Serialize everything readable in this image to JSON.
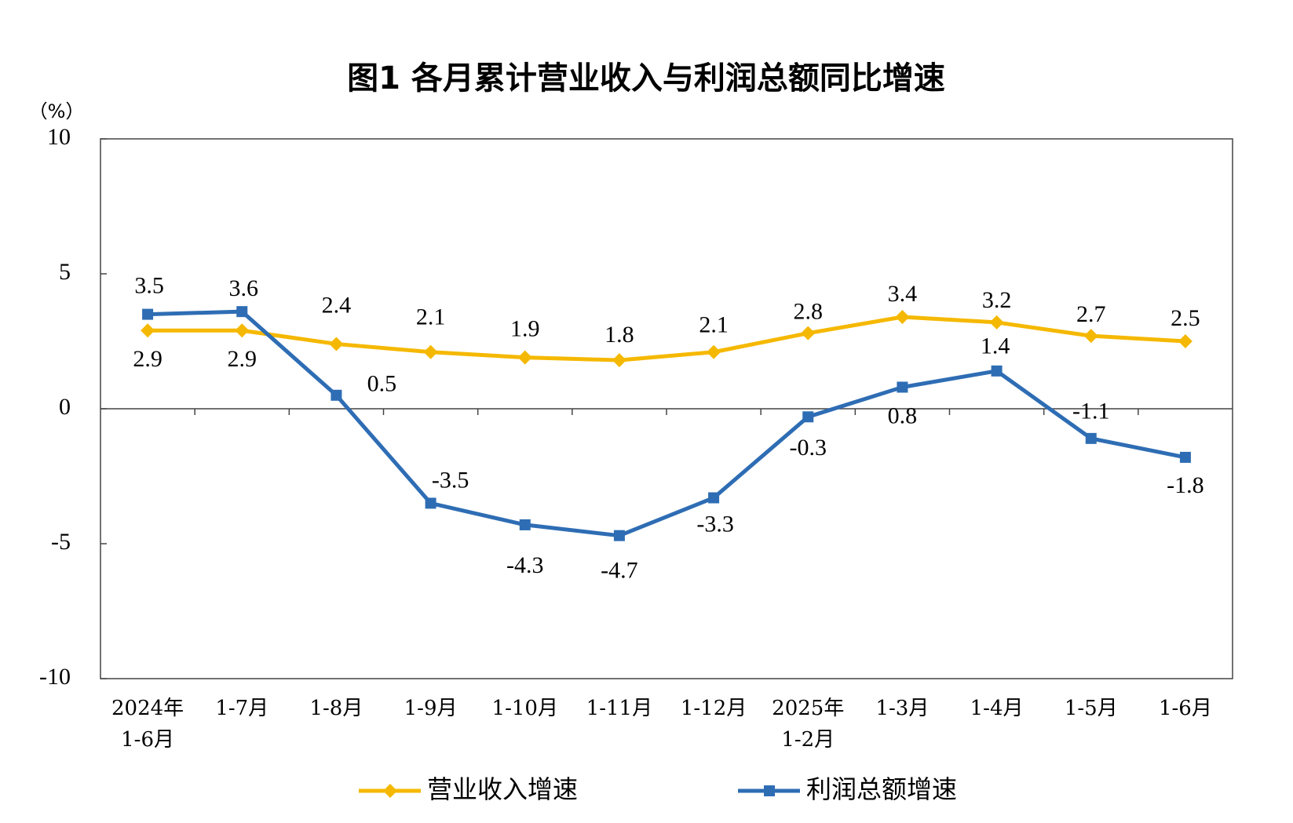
{
  "chart_data": {
    "type": "line",
    "title": "图1 各月累计营业收入与利润总额同比增速",
    "y_label": "（%）",
    "categories": [
      "2024年\n1-6月",
      "1-7月",
      "1-8月",
      "1-9月",
      "1-10月",
      "1-11月",
      "1-12月",
      "2025年\n1-2月",
      "1-3月",
      "1-4月",
      "1-5月",
      "1-6月"
    ],
    "series": [
      {
        "name": "营业收入增速",
        "color": "#f5b800",
        "marker": "diamond",
        "values": [
          2.9,
          2.9,
          2.4,
          2.1,
          1.9,
          1.8,
          2.1,
          2.8,
          3.4,
          3.2,
          2.7,
          2.5
        ]
      },
      {
        "name": "利润总额增速",
        "color": "#2e6db4",
        "marker": "square",
        "values": [
          3.5,
          3.6,
          0.5,
          -3.5,
          -4.3,
          -4.7,
          -3.3,
          -0.3,
          0.8,
          1.4,
          -1.1,
          -1.8
        ]
      }
    ],
    "ylim": [
      -10,
      10
    ],
    "yticks": [
      -10,
      -5,
      0,
      5,
      10
    ],
    "grid": false,
    "legend": "bottom"
  }
}
